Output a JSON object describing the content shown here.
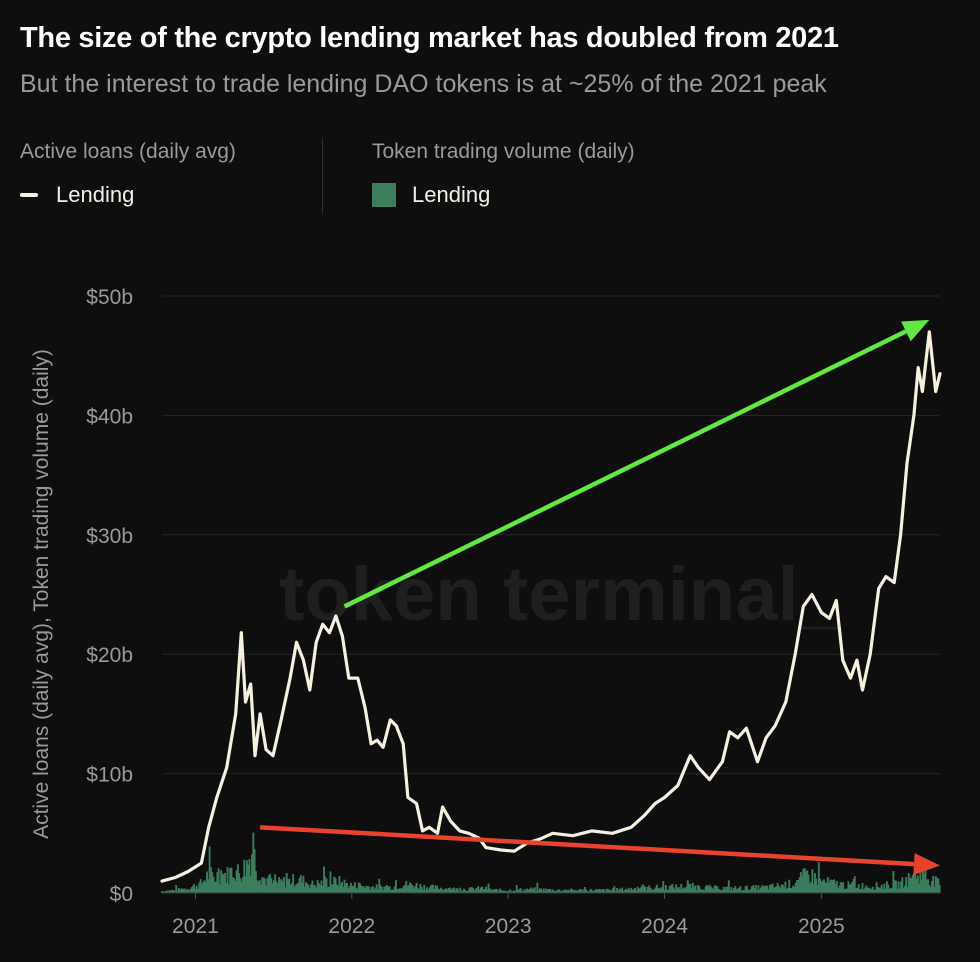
{
  "title": "The size of the crypto lending market has doubled from 2021",
  "subtitle": "But the interest to trade lending DAO tokens is at ~25% of the 2021 peak",
  "legend": {
    "left_group_title": "Active loans (daily avg)",
    "left_item": "Lending",
    "right_group_title": "Token trading volume (daily)",
    "right_item": "Lending"
  },
  "watermark": "token terminal_",
  "colors": {
    "background": "#0e0e0e",
    "line": "#f6f0df",
    "bars": "#3b7d5c",
    "up_arrow": "#62e843",
    "down_arrow": "#e8432c",
    "grid": "#262626",
    "axis_text": "#9a9a98"
  },
  "chart_data": {
    "type": "line",
    "ylabel": "Active loans (daily avg), Token trading volume (daily)",
    "ylim": [
      0,
      50
    ],
    "yunit": "$b",
    "yticks": [
      0,
      10,
      20,
      30,
      40,
      50
    ],
    "ytick_labels": [
      "$0",
      "$10b",
      "$20b",
      "$30b",
      "$40b",
      "$50b"
    ],
    "xlim": [
      "2020-10-15",
      "2025-10-05"
    ],
    "xticks": [
      "2021-01-01",
      "2022-01-01",
      "2023-01-01",
      "2024-01-01",
      "2025-01-01"
    ],
    "xtick_labels": [
      "2021",
      "2022",
      "2023",
      "2024",
      "2025"
    ],
    "grid": true,
    "series": [
      {
        "name": "Active loans (daily avg) - Lending",
        "kind": "line",
        "points": [
          [
            "2020-10-15",
            1.0
          ],
          [
            "2020-11-15",
            1.3
          ],
          [
            "2020-12-15",
            1.8
          ],
          [
            "2021-01-15",
            2.5
          ],
          [
            "2021-02-01",
            5.5
          ],
          [
            "2021-02-20",
            8.0
          ],
          [
            "2021-03-15",
            10.5
          ],
          [
            "2021-04-05",
            15.0
          ],
          [
            "2021-04-18",
            21.8
          ],
          [
            "2021-04-28",
            16.0
          ],
          [
            "2021-05-10",
            17.5
          ],
          [
            "2021-05-20",
            11.5
          ],
          [
            "2021-06-01",
            15.0
          ],
          [
            "2021-06-15",
            12.0
          ],
          [
            "2021-07-01",
            11.5
          ],
          [
            "2021-07-20",
            14.5
          ],
          [
            "2021-08-10",
            18.0
          ],
          [
            "2021-08-25",
            21.0
          ],
          [
            "2021-09-10",
            19.5
          ],
          [
            "2021-09-25",
            17.0
          ],
          [
            "2021-10-10",
            21.0
          ],
          [
            "2021-10-25",
            22.5
          ],
          [
            "2021-11-10",
            21.8
          ],
          [
            "2021-11-25",
            23.2
          ],
          [
            "2021-12-10",
            21.5
          ],
          [
            "2021-12-25",
            18.0
          ],
          [
            "2022-01-15",
            18.0
          ],
          [
            "2022-02-01",
            15.5
          ],
          [
            "2022-02-15",
            12.5
          ],
          [
            "2022-03-01",
            12.8
          ],
          [
            "2022-03-15",
            12.2
          ],
          [
            "2022-04-01",
            14.5
          ],
          [
            "2022-04-15",
            14.0
          ],
          [
            "2022-05-01",
            12.5
          ],
          [
            "2022-05-12",
            8.0
          ],
          [
            "2022-06-01",
            7.5
          ],
          [
            "2022-06-15",
            5.2
          ],
          [
            "2022-07-01",
            5.5
          ],
          [
            "2022-07-20",
            5.0
          ],
          [
            "2022-08-01",
            7.2
          ],
          [
            "2022-08-20",
            6.0
          ],
          [
            "2022-09-10",
            5.2
          ],
          [
            "2022-10-01",
            5.0
          ],
          [
            "2022-10-25",
            4.6
          ],
          [
            "2022-11-10",
            3.8
          ],
          [
            "2022-12-15",
            3.6
          ],
          [
            "2023-01-15",
            3.5
          ],
          [
            "2023-02-15",
            4.2
          ],
          [
            "2023-03-15",
            4.5
          ],
          [
            "2023-04-15",
            5.0
          ],
          [
            "2023-06-01",
            4.8
          ],
          [
            "2023-07-15",
            5.2
          ],
          [
            "2023-09-01",
            5.0
          ],
          [
            "2023-10-15",
            5.5
          ],
          [
            "2023-11-15",
            6.5
          ],
          [
            "2023-12-10",
            7.5
          ],
          [
            "2024-01-01",
            8.0
          ],
          [
            "2024-02-01",
            9.0
          ],
          [
            "2024-03-01",
            11.5
          ],
          [
            "2024-03-20",
            10.5
          ],
          [
            "2024-04-15",
            9.5
          ],
          [
            "2024-05-15",
            11.0
          ],
          [
            "2024-06-01",
            13.5
          ],
          [
            "2024-06-20",
            13.0
          ],
          [
            "2024-07-10",
            13.8
          ],
          [
            "2024-08-05",
            11.0
          ],
          [
            "2024-08-25",
            13.0
          ],
          [
            "2024-09-15",
            14.0
          ],
          [
            "2024-10-10",
            16.0
          ],
          [
            "2024-11-01",
            20.0
          ],
          [
            "2024-11-20",
            24.0
          ],
          [
            "2024-12-10",
            25.0
          ],
          [
            "2025-01-01",
            23.5
          ],
          [
            "2025-01-20",
            23.0
          ],
          [
            "2025-02-05",
            24.5
          ],
          [
            "2025-02-20",
            19.5
          ],
          [
            "2025-03-10",
            18.0
          ],
          [
            "2025-03-25",
            19.5
          ],
          [
            "2025-04-07",
            17.0
          ],
          [
            "2025-04-25",
            20.0
          ],
          [
            "2025-05-15",
            25.5
          ],
          [
            "2025-06-01",
            26.5
          ],
          [
            "2025-06-20",
            26.0
          ],
          [
            "2025-07-05",
            30.0
          ],
          [
            "2025-07-20",
            36.0
          ],
          [
            "2025-08-05",
            40.0
          ],
          [
            "2025-08-15",
            44.0
          ],
          [
            "2025-08-25",
            42.0
          ],
          [
            "2025-09-10",
            47.0
          ],
          [
            "2025-09-25",
            42.0
          ],
          [
            "2025-10-05",
            43.5
          ]
        ]
      },
      {
        "name": "Token trading volume (daily) - Lending",
        "kind": "bar",
        "points": [
          [
            "2020-10-15",
            0.2
          ],
          [
            "2020-11-15",
            0.3
          ],
          [
            "2020-12-15",
            0.5
          ],
          [
            "2021-01-15",
            1.0
          ],
          [
            "2021-02-01",
            2.0
          ],
          [
            "2021-02-15",
            1.5
          ],
          [
            "2021-03-01",
            2.2
          ],
          [
            "2021-03-15",
            1.8
          ],
          [
            "2021-04-01",
            2.5
          ],
          [
            "2021-04-15",
            2.0
          ],
          [
            "2021-05-01",
            3.0
          ],
          [
            "2021-05-15",
            4.5
          ],
          [
            "2021-05-25",
            2.5
          ],
          [
            "2021-06-10",
            1.5
          ],
          [
            "2021-07-01",
            1.0
          ],
          [
            "2021-08-01",
            1.2
          ],
          [
            "2021-09-01",
            1.4
          ],
          [
            "2021-10-01",
            0.9
          ],
          [
            "2021-11-01",
            1.1
          ],
          [
            "2021-12-01",
            1.2
          ],
          [
            "2022-01-01",
            0.8
          ],
          [
            "2022-02-01",
            0.7
          ],
          [
            "2022-03-01",
            0.6
          ],
          [
            "2022-04-01",
            0.6
          ],
          [
            "2022-05-01",
            0.9
          ],
          [
            "2022-06-01",
            0.8
          ],
          [
            "2022-07-01",
            0.6
          ],
          [
            "2022-08-01",
            0.5
          ],
          [
            "2022-09-01",
            0.4
          ],
          [
            "2022-10-01",
            0.4
          ],
          [
            "2022-11-01",
            0.5
          ],
          [
            "2022-12-01",
            0.3
          ],
          [
            "2023-01-01",
            0.3
          ],
          [
            "2023-03-01",
            0.4
          ],
          [
            "2023-05-01",
            0.3
          ],
          [
            "2023-07-01",
            0.3
          ],
          [
            "2023-09-01",
            0.3
          ],
          [
            "2023-11-01",
            0.5
          ],
          [
            "2024-01-01",
            0.6
          ],
          [
            "2024-03-01",
            0.7
          ],
          [
            "2024-05-01",
            0.5
          ],
          [
            "2024-07-01",
            0.5
          ],
          [
            "2024-09-01",
            0.6
          ],
          [
            "2024-11-01",
            1.0
          ],
          [
            "2024-12-01",
            2.0
          ],
          [
            "2025-01-01",
            1.2
          ],
          [
            "2025-03-01",
            0.8
          ],
          [
            "2025-05-01",
            0.7
          ],
          [
            "2025-07-01",
            0.9
          ],
          [
            "2025-08-20",
            2.0
          ],
          [
            "2025-10-05",
            0.9
          ]
        ]
      }
    ],
    "annotations": [
      {
        "kind": "arrow",
        "color": "up_arrow",
        "from": [
          "2021-12-15",
          24
        ],
        "to": [
          "2025-09-10",
          48
        ]
      },
      {
        "kind": "arrow",
        "color": "down_arrow",
        "from": [
          "2021-06-01",
          5.5
        ],
        "to": [
          "2025-10-05",
          2.3
        ]
      }
    ]
  }
}
